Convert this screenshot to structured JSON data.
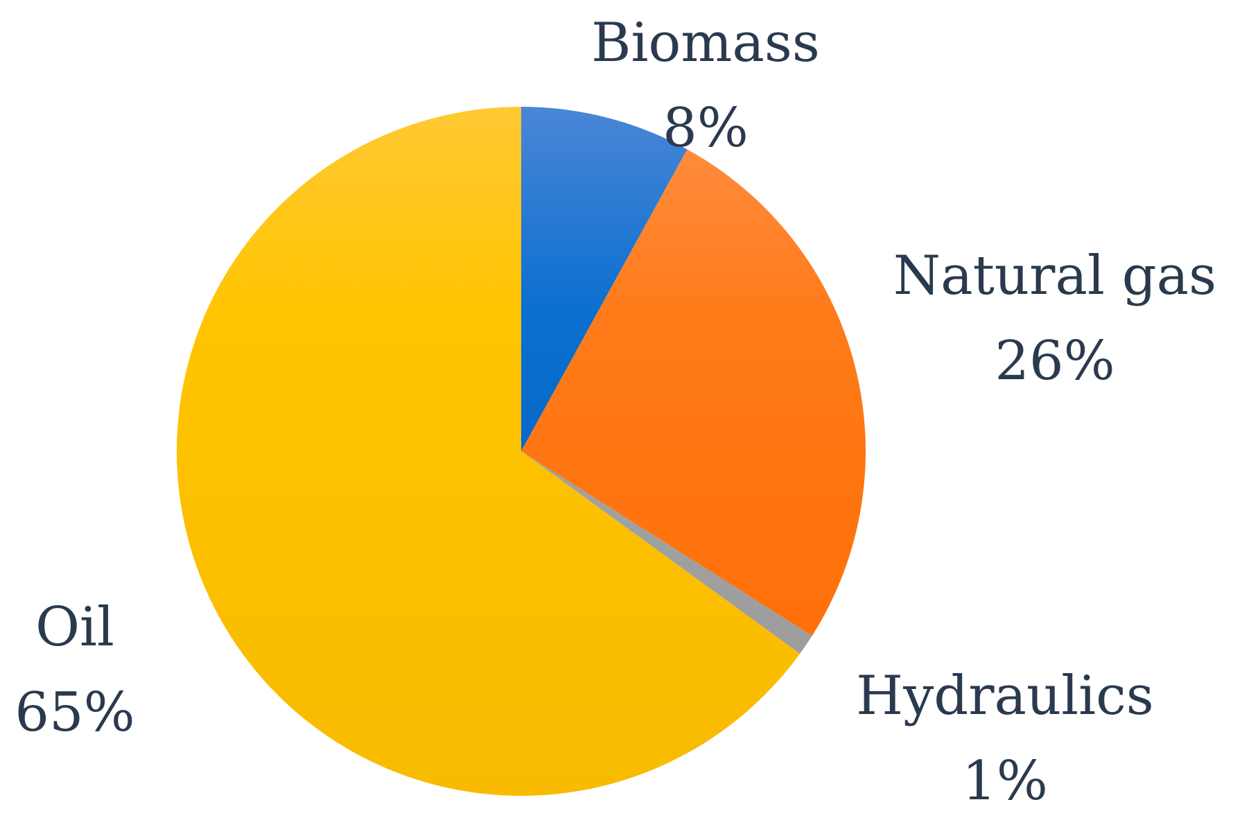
{
  "chart_data": {
    "type": "pie",
    "start_angle": "12 o'clock",
    "direction": "clockwise",
    "slices": [
      {
        "name": "Biomass",
        "value": 8,
        "value_label": "8%",
        "color": "#0a6fd0",
        "color_light": "#4a86d6",
        "color_dark": "#005bbb"
      },
      {
        "name": "Natural gas",
        "value": 26,
        "value_label": "26%",
        "color": "#ff7b1a",
        "color_light": "#ff8f45",
        "color_dark": "#ff6a00"
      },
      {
        "name": "Hydraulics",
        "value": 1,
        "value_label": "1%",
        "color": "#a6a6a6",
        "color_light": "#b5b5b5",
        "color_dark": "#999999"
      },
      {
        "name": "Oil",
        "value": 65,
        "value_label": "65%",
        "color": "#ffc400",
        "color_light": "#ffc933",
        "color_dark": "#f8bb00"
      }
    ],
    "label_color": "#2a3a4e"
  }
}
